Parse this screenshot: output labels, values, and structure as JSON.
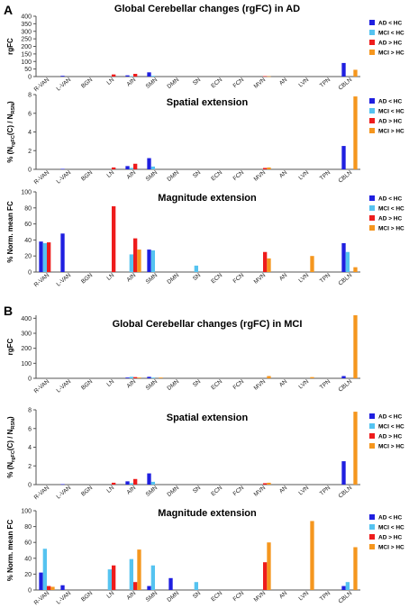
{
  "figure": {
    "sections": [
      {
        "label": "A"
      },
      {
        "label": "B"
      }
    ]
  },
  "colors": {
    "AD < HC": "#1f1fe0",
    "MCI < HC": "#55c3f0",
    "AD > HC": "#ee1c1c",
    "MCI > HC": "#f5961e"
  },
  "chart_data": [
    {
      "type": "bar",
      "title": "Global Cerebellar changes (rgFC) in AD",
      "ylabel": "rgFC",
      "ylim": [
        0,
        400
      ],
      "yticks": [
        0,
        50,
        100,
        150,
        200,
        250,
        300,
        350,
        400
      ],
      "categories": [
        "R-VAN",
        "L-VAN",
        "BGN",
        "LN",
        "AIN",
        "SMN",
        "DMN",
        "SN",
        "ECN",
        "FCN",
        "MVN",
        "AN",
        "LVN",
        "TPN",
        "CBLN"
      ],
      "series": [
        {
          "name": "AD < HC",
          "values": [
            0,
            5,
            0,
            0,
            8,
            28,
            0,
            0,
            0,
            0,
            0,
            0,
            0,
            0,
            90
          ]
        },
        {
          "name": "MCI < HC",
          "values": [
            0,
            0,
            0,
            0,
            3,
            5,
            0,
            0,
            0,
            0,
            0,
            0,
            0,
            0,
            0
          ]
        },
        {
          "name": "AD > HC",
          "values": [
            0,
            0,
            0,
            14,
            18,
            0,
            0,
            0,
            0,
            0,
            3,
            0,
            0,
            0,
            0
          ]
        },
        {
          "name": "MCI > HC",
          "values": [
            0,
            0,
            0,
            0,
            0,
            0,
            0,
            0,
            0,
            0,
            2,
            0,
            0,
            0,
            45
          ]
        }
      ],
      "legend": "right"
    },
    {
      "type": "bar",
      "title": "Spatial extension",
      "ylabel": "% (N",
      "ylabel_sub1": "rgFC",
      "ylabel_mid": "(C) / N",
      "ylabel_sub2": "RSN",
      "ylabel_end": ")",
      "ylim": [
        0,
        8
      ],
      "yticks": [
        0,
        2,
        4,
        6,
        8
      ],
      "categories": [
        "R-VAN",
        "L-VAN",
        "BGN",
        "LN",
        "AIN",
        "SMN",
        "DMN",
        "SN",
        "ECN",
        "FCN",
        "MVN",
        "AN",
        "LVN",
        "TPN",
        "CBLN"
      ],
      "series": [
        {
          "name": "AD < HC",
          "values": [
            0,
            0.05,
            0,
            0,
            0.35,
            1.2,
            0,
            0,
            0,
            0,
            0,
            0,
            0,
            0,
            2.5
          ]
        },
        {
          "name": "MCI < HC",
          "values": [
            0,
            0,
            0,
            0,
            0.15,
            0.3,
            0,
            0,
            0,
            0,
            0,
            0,
            0,
            0,
            0
          ]
        },
        {
          "name": "AD > HC",
          "values": [
            0,
            0,
            0,
            0.2,
            0.6,
            0,
            0,
            0,
            0,
            0,
            0.15,
            0,
            0,
            0,
            0
          ]
        },
        {
          "name": "MCI > HC",
          "values": [
            0,
            0,
            0,
            0,
            0,
            0,
            0,
            0,
            0,
            0,
            0.2,
            0,
            0,
            0,
            7.8
          ]
        }
      ],
      "legend": "right"
    },
    {
      "type": "bar",
      "title": "Magnitude extension",
      "ylabel": "% Norm. mean FC",
      "ylim": [
        0,
        100
      ],
      "yticks": [
        0,
        20,
        40,
        60,
        80,
        100
      ],
      "categories": [
        "R-VAN",
        "L-VAN",
        "BGN",
        "LN",
        "AIN",
        "SMN",
        "DMN",
        "SN",
        "ECN",
        "FCN",
        "MVN",
        "AN",
        "LVN",
        "TPN",
        "CBLN"
      ],
      "series": [
        {
          "name": "AD < HC",
          "values": [
            38,
            48,
            0,
            0,
            0,
            28,
            0,
            0,
            0,
            0,
            0,
            0,
            0,
            0,
            36
          ]
        },
        {
          "name": "MCI < HC",
          "values": [
            36,
            0,
            0,
            0,
            22,
            27,
            0,
            8,
            0,
            0,
            0,
            0,
            0,
            0,
            25
          ]
        },
        {
          "name": "AD > HC",
          "values": [
            37,
            0,
            0,
            82,
            42,
            0,
            0,
            0,
            0,
            0,
            25,
            0,
            0,
            0,
            0
          ]
        },
        {
          "name": "MCI > HC",
          "values": [
            0,
            0,
            0,
            0,
            28,
            0,
            0,
            0,
            0,
            0,
            17,
            0,
            20,
            0,
            6
          ]
        }
      ],
      "legend": "right"
    },
    {
      "type": "bar",
      "title": "Global Cerebellar changes (rgFC) in MCI",
      "ylabel": "rgFC",
      "ylim": [
        0,
        420
      ],
      "yticks": [
        0,
        100,
        200,
        300,
        400
      ],
      "categories": [
        "R-VAN",
        "L-VAN",
        "BGN",
        "LN",
        "AIN",
        "SMN",
        "DMN",
        "SN",
        "ECN",
        "FCN",
        "MVN",
        "AN",
        "LVN",
        "TPN",
        "CBLN"
      ],
      "series": [
        {
          "name": "AD < HC",
          "values": [
            0,
            0,
            0,
            0,
            5,
            10,
            0,
            0,
            0,
            0,
            0,
            0,
            0,
            0,
            15
          ]
        },
        {
          "name": "MCI < HC",
          "values": [
            0,
            0,
            0,
            0,
            10,
            5,
            0,
            0,
            0,
            0,
            0,
            0,
            0,
            0,
            0
          ]
        },
        {
          "name": "AD > HC",
          "values": [
            0,
            0,
            0,
            0,
            8,
            0,
            0,
            0,
            0,
            0,
            0,
            0,
            0,
            0,
            0
          ]
        },
        {
          "name": "MCI > HC",
          "values": [
            0,
            0,
            0,
            0,
            5,
            5,
            0,
            0,
            0,
            0,
            15,
            0,
            8,
            0,
            420
          ]
        }
      ],
      "legend": "none"
    },
    {
      "type": "bar",
      "title": "Spatial extension",
      "ylabel": "% (N",
      "ylabel_sub1": "rgFC",
      "ylabel_mid": "(C) / N",
      "ylabel_sub2": "RSN",
      "ylabel_end": ")",
      "ylim": [
        0,
        8
      ],
      "yticks": [
        0,
        2,
        4,
        6,
        8
      ],
      "categories": [
        "R-VAN",
        "L-VAN",
        "BGN",
        "LN",
        "AIN",
        "SMN",
        "DMN",
        "SN",
        "ECN",
        "FCN",
        "MVN",
        "AN",
        "LVN",
        "TPN",
        "CBLN"
      ],
      "series": [
        {
          "name": "AD < HC",
          "values": [
            0,
            0.05,
            0,
            0,
            0.35,
            1.2,
            0,
            0,
            0,
            0,
            0,
            0,
            0,
            0,
            2.5
          ]
        },
        {
          "name": "MCI < HC",
          "values": [
            0,
            0,
            0,
            0,
            0.15,
            0.3,
            0,
            0,
            0,
            0,
            0,
            0,
            0,
            0,
            0
          ]
        },
        {
          "name": "AD > HC",
          "values": [
            0,
            0,
            0,
            0.2,
            0.6,
            0,
            0,
            0,
            0,
            0,
            0.15,
            0,
            0,
            0,
            0
          ]
        },
        {
          "name": "MCI > HC",
          "values": [
            0,
            0,
            0,
            0,
            0,
            0,
            0,
            0,
            0,
            0,
            0.2,
            0,
            0,
            0,
            7.8
          ]
        }
      ],
      "legend": "right"
    },
    {
      "type": "bar",
      "title": "Magnitude extension",
      "ylabel": "% Norm. mean FC",
      "ylim": [
        0,
        100
      ],
      "yticks": [
        0,
        20,
        40,
        60,
        80,
        100
      ],
      "categories": [
        "R-VAN",
        "L-VAN",
        "BGN",
        "LN",
        "AIN",
        "SMN",
        "DMN",
        "SN",
        "ECN",
        "FCN",
        "MVN",
        "AN",
        "LVN",
        "TPN",
        "CBLN"
      ],
      "series": [
        {
          "name": "AD < HC",
          "values": [
            22,
            6,
            0,
            0,
            0,
            5,
            15,
            0,
            0,
            0,
            0,
            0,
            0,
            0,
            5
          ]
        },
        {
          "name": "MCI < HC",
          "values": [
            52,
            0,
            0,
            26,
            39,
            31,
            0,
            10,
            0,
            0,
            0,
            0,
            0,
            0,
            10
          ]
        },
        {
          "name": "AD > HC",
          "values": [
            5,
            0,
            0,
            31,
            10,
            0,
            0,
            0,
            0,
            0,
            35,
            0,
            0,
            0,
            0
          ]
        },
        {
          "name": "MCI > HC",
          "values": [
            4,
            0,
            0,
            0,
            51,
            0,
            0,
            0,
            0,
            0,
            60,
            0,
            87,
            0,
            54
          ]
        }
      ],
      "legend": "right"
    }
  ]
}
